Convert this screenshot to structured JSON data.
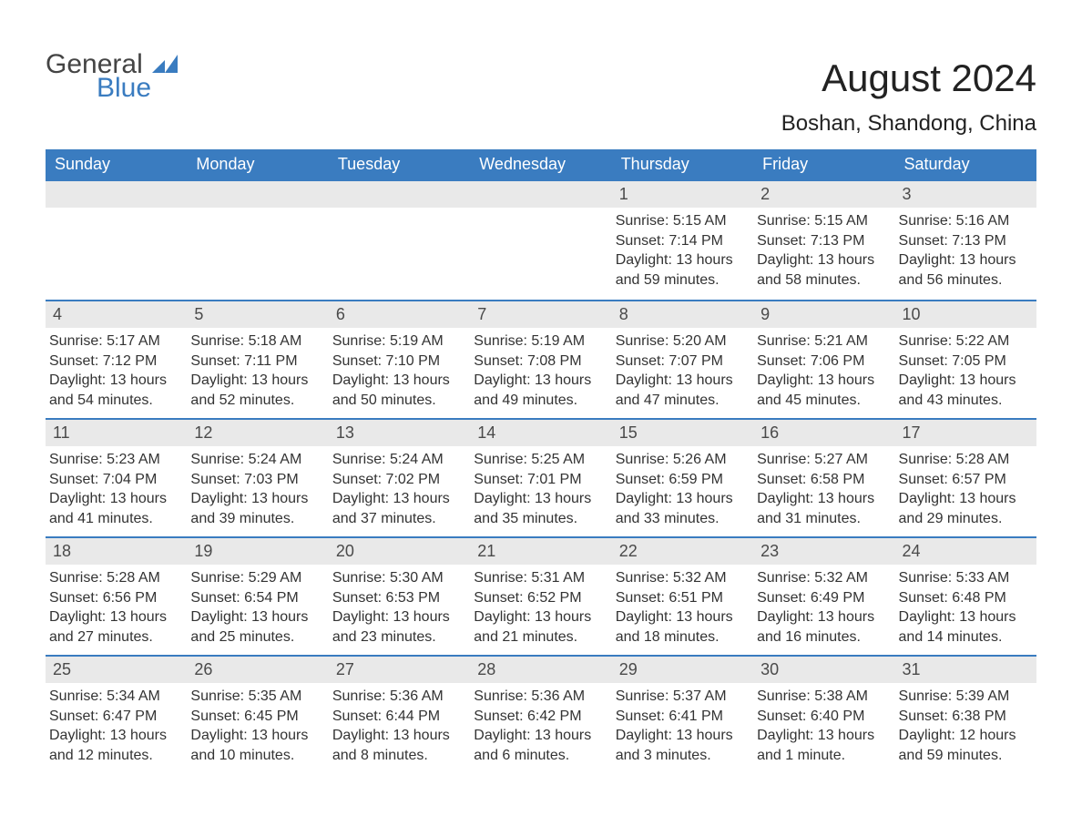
{
  "logo": {
    "general": "General",
    "blue": "Blue",
    "icon_color": "#3a7cc0"
  },
  "header": {
    "month_title": "August 2024",
    "location": "Boshan, Shandong, China"
  },
  "style": {
    "header_bg": "#3a7cc0",
    "header_text": "#ffffff",
    "daynum_bg": "#e9e9e9",
    "daynum_text": "#4a4a4a",
    "row_border": "#3a7cc0",
    "body_text": "#333333",
    "font_family": "Arial, Helvetica, sans-serif",
    "month_title_fontsize": 42,
    "location_fontsize": 24,
    "dayheader_fontsize": 18,
    "cell_fontsize": 16
  },
  "day_headers": [
    "Sunday",
    "Monday",
    "Tuesday",
    "Wednesday",
    "Thursday",
    "Friday",
    "Saturday"
  ],
  "weeks": [
    [
      {
        "empty": true
      },
      {
        "empty": true
      },
      {
        "empty": true
      },
      {
        "empty": true
      },
      {
        "day": "1",
        "sunrise": "Sunrise: 5:15 AM",
        "sunset": "Sunset: 7:14 PM",
        "daylight": "Daylight: 13 hours and 59 minutes."
      },
      {
        "day": "2",
        "sunrise": "Sunrise: 5:15 AM",
        "sunset": "Sunset: 7:13 PM",
        "daylight": "Daylight: 13 hours and 58 minutes."
      },
      {
        "day": "3",
        "sunrise": "Sunrise: 5:16 AM",
        "sunset": "Sunset: 7:13 PM",
        "daylight": "Daylight: 13 hours and 56 minutes."
      }
    ],
    [
      {
        "day": "4",
        "sunrise": "Sunrise: 5:17 AM",
        "sunset": "Sunset: 7:12 PM",
        "daylight": "Daylight: 13 hours and 54 minutes."
      },
      {
        "day": "5",
        "sunrise": "Sunrise: 5:18 AM",
        "sunset": "Sunset: 7:11 PM",
        "daylight": "Daylight: 13 hours and 52 minutes."
      },
      {
        "day": "6",
        "sunrise": "Sunrise: 5:19 AM",
        "sunset": "Sunset: 7:10 PM",
        "daylight": "Daylight: 13 hours and 50 minutes."
      },
      {
        "day": "7",
        "sunrise": "Sunrise: 5:19 AM",
        "sunset": "Sunset: 7:08 PM",
        "daylight": "Daylight: 13 hours and 49 minutes."
      },
      {
        "day": "8",
        "sunrise": "Sunrise: 5:20 AM",
        "sunset": "Sunset: 7:07 PM",
        "daylight": "Daylight: 13 hours and 47 minutes."
      },
      {
        "day": "9",
        "sunrise": "Sunrise: 5:21 AM",
        "sunset": "Sunset: 7:06 PM",
        "daylight": "Daylight: 13 hours and 45 minutes."
      },
      {
        "day": "10",
        "sunrise": "Sunrise: 5:22 AM",
        "sunset": "Sunset: 7:05 PM",
        "daylight": "Daylight: 13 hours and 43 minutes."
      }
    ],
    [
      {
        "day": "11",
        "sunrise": "Sunrise: 5:23 AM",
        "sunset": "Sunset: 7:04 PM",
        "daylight": "Daylight: 13 hours and 41 minutes."
      },
      {
        "day": "12",
        "sunrise": "Sunrise: 5:24 AM",
        "sunset": "Sunset: 7:03 PM",
        "daylight": "Daylight: 13 hours and 39 minutes."
      },
      {
        "day": "13",
        "sunrise": "Sunrise: 5:24 AM",
        "sunset": "Sunset: 7:02 PM",
        "daylight": "Daylight: 13 hours and 37 minutes."
      },
      {
        "day": "14",
        "sunrise": "Sunrise: 5:25 AM",
        "sunset": "Sunset: 7:01 PM",
        "daylight": "Daylight: 13 hours and 35 minutes."
      },
      {
        "day": "15",
        "sunrise": "Sunrise: 5:26 AM",
        "sunset": "Sunset: 6:59 PM",
        "daylight": "Daylight: 13 hours and 33 minutes."
      },
      {
        "day": "16",
        "sunrise": "Sunrise: 5:27 AM",
        "sunset": "Sunset: 6:58 PM",
        "daylight": "Daylight: 13 hours and 31 minutes."
      },
      {
        "day": "17",
        "sunrise": "Sunrise: 5:28 AM",
        "sunset": "Sunset: 6:57 PM",
        "daylight": "Daylight: 13 hours and 29 minutes."
      }
    ],
    [
      {
        "day": "18",
        "sunrise": "Sunrise: 5:28 AM",
        "sunset": "Sunset: 6:56 PM",
        "daylight": "Daylight: 13 hours and 27 minutes."
      },
      {
        "day": "19",
        "sunrise": "Sunrise: 5:29 AM",
        "sunset": "Sunset: 6:54 PM",
        "daylight": "Daylight: 13 hours and 25 minutes."
      },
      {
        "day": "20",
        "sunrise": "Sunrise: 5:30 AM",
        "sunset": "Sunset: 6:53 PM",
        "daylight": "Daylight: 13 hours and 23 minutes."
      },
      {
        "day": "21",
        "sunrise": "Sunrise: 5:31 AM",
        "sunset": "Sunset: 6:52 PM",
        "daylight": "Daylight: 13 hours and 21 minutes."
      },
      {
        "day": "22",
        "sunrise": "Sunrise: 5:32 AM",
        "sunset": "Sunset: 6:51 PM",
        "daylight": "Daylight: 13 hours and 18 minutes."
      },
      {
        "day": "23",
        "sunrise": "Sunrise: 5:32 AM",
        "sunset": "Sunset: 6:49 PM",
        "daylight": "Daylight: 13 hours and 16 minutes."
      },
      {
        "day": "24",
        "sunrise": "Sunrise: 5:33 AM",
        "sunset": "Sunset: 6:48 PM",
        "daylight": "Daylight: 13 hours and 14 minutes."
      }
    ],
    [
      {
        "day": "25",
        "sunrise": "Sunrise: 5:34 AM",
        "sunset": "Sunset: 6:47 PM",
        "daylight": "Daylight: 13 hours and 12 minutes."
      },
      {
        "day": "26",
        "sunrise": "Sunrise: 5:35 AM",
        "sunset": "Sunset: 6:45 PM",
        "daylight": "Daylight: 13 hours and 10 minutes."
      },
      {
        "day": "27",
        "sunrise": "Sunrise: 5:36 AM",
        "sunset": "Sunset: 6:44 PM",
        "daylight": "Daylight: 13 hours and 8 minutes."
      },
      {
        "day": "28",
        "sunrise": "Sunrise: 5:36 AM",
        "sunset": "Sunset: 6:42 PM",
        "daylight": "Daylight: 13 hours and 6 minutes."
      },
      {
        "day": "29",
        "sunrise": "Sunrise: 5:37 AM",
        "sunset": "Sunset: 6:41 PM",
        "daylight": "Daylight: 13 hours and 3 minutes."
      },
      {
        "day": "30",
        "sunrise": "Sunrise: 5:38 AM",
        "sunset": "Sunset: 6:40 PM",
        "daylight": "Daylight: 13 hours and 1 minute."
      },
      {
        "day": "31",
        "sunrise": "Sunrise: 5:39 AM",
        "sunset": "Sunset: 6:38 PM",
        "daylight": "Daylight: 12 hours and 59 minutes."
      }
    ]
  ]
}
